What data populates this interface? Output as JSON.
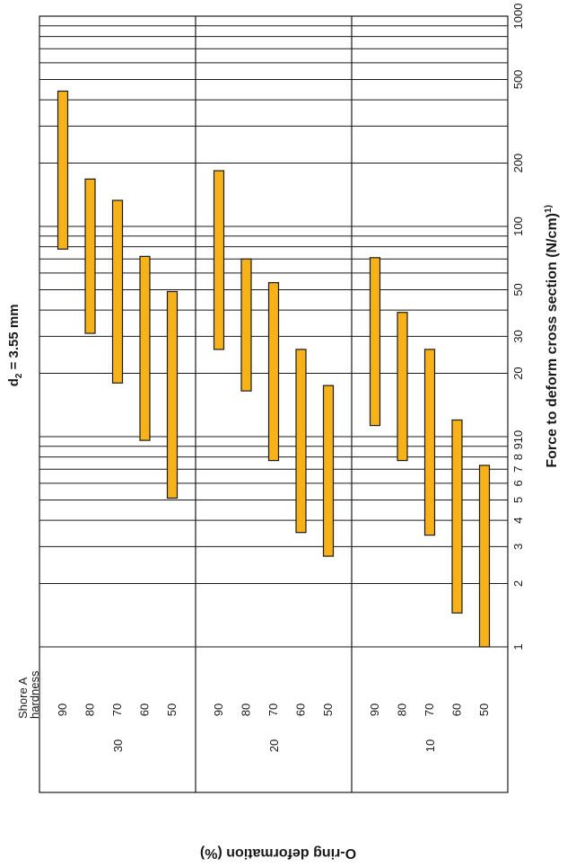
{
  "chart_data": {
    "type": "bar",
    "orientation": "rotated",
    "title_main": "d",
    "title_sub": "2",
    "title_rest": " = 3.55 mm",
    "value_axis_label": "Force to deform cross section (N/cm)",
    "value_axis_label_sup": "1)",
    "category_axis_label": "O-ring deformation (%)",
    "hardness_header_line1": "Shore A",
    "hardness_header_line2": "hardness",
    "scale": "log",
    "value_range": [
      1,
      1000
    ],
    "tick_labels": [
      {
        "value": 1,
        "label": "1"
      },
      {
        "value": 2,
        "label": "2"
      },
      {
        "value": 3,
        "label": "3"
      },
      {
        "value": 4,
        "label": "4"
      },
      {
        "value": 5,
        "label": "5"
      },
      {
        "value": 6,
        "label": "6"
      },
      {
        "value": 7,
        "label": "7"
      },
      {
        "value": 8,
        "label": "8"
      },
      {
        "value": 9,
        "label": "9"
      },
      {
        "value": 10,
        "label": "10"
      },
      {
        "value": 20,
        "label": "20"
      },
      {
        "value": 30,
        "label": "30"
      },
      {
        "value": 50,
        "label": "50"
      },
      {
        "value": 100,
        "label": "100"
      },
      {
        "value": 200,
        "label": "200"
      },
      {
        "value": 500,
        "label": "500"
      },
      {
        "value": 1000,
        "label": "1000"
      }
    ],
    "gridlines": [
      2,
      3,
      4,
      5,
      6,
      7,
      8,
      9,
      10,
      20,
      30,
      40,
      50,
      60,
      70,
      80,
      90,
      100,
      200,
      300,
      400,
      500,
      600,
      700,
      800,
      900,
      1000
    ],
    "bar_color": "#F7B219",
    "groups": [
      {
        "deformation": "30",
        "bars": [
          {
            "hardness": "90",
            "low": 78,
            "high": 440
          },
          {
            "hardness": "80",
            "low": 31,
            "high": 168
          },
          {
            "hardness": "70",
            "low": 18,
            "high": 133
          },
          {
            "hardness": "60",
            "low": 9.6,
            "high": 72
          },
          {
            "hardness": "50",
            "low": 5.1,
            "high": 49
          }
        ]
      },
      {
        "deformation": "20",
        "bars": [
          {
            "hardness": "90",
            "low": 26,
            "high": 184
          },
          {
            "hardness": "80",
            "low": 16.5,
            "high": 70
          },
          {
            "hardness": "70",
            "low": 7.7,
            "high": 54
          },
          {
            "hardness": "60",
            "low": 3.5,
            "high": 26
          },
          {
            "hardness": "50",
            "low": 2.7,
            "high": 17.5
          }
        ]
      },
      {
        "deformation": "10",
        "bars": [
          {
            "hardness": "90",
            "low": 11.3,
            "high": 71
          },
          {
            "hardness": "80",
            "low": 7.7,
            "high": 39
          },
          {
            "hardness": "70",
            "low": 3.4,
            "high": 26
          },
          {
            "hardness": "60",
            "low": 1.45,
            "high": 12
          },
          {
            "hardness": "50",
            "low": 1,
            "high": 7.3
          }
        ]
      }
    ]
  }
}
